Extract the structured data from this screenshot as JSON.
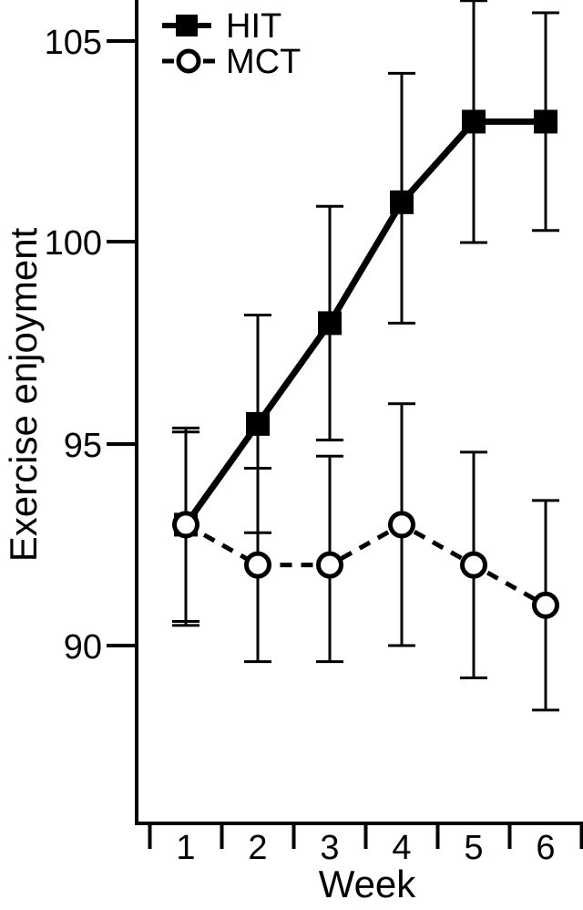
{
  "figure": {
    "background": "#ffffff",
    "ink": "#000000"
  },
  "chart_data": {
    "type": "line",
    "title": "",
    "xlabel": "Week",
    "ylabel": "Exercise enjoyment",
    "x": [
      1,
      2,
      3,
      4,
      5,
      6
    ],
    "x_tick_labels": [
      "1",
      "2",
      "3",
      "4",
      "5",
      "6"
    ],
    "y_ticks": [
      105,
      100,
      95,
      90
    ],
    "y_tick_labels": [
      "105",
      "100",
      "95",
      "90"
    ],
    "ylim": [
      85.6,
      106.1
    ],
    "grid": "off",
    "legend_position": "top-left",
    "series": [
      {
        "name": "HIT",
        "marker": "filled-square",
        "line_style": "solid",
        "color": "#000000",
        "values": [
          93,
          95.5,
          98,
          101,
          103,
          103
        ],
        "error_low": [
          90.5,
          92.8,
          95.1,
          98.0,
          100.0,
          100.3
        ],
        "error_high": [
          95.4,
          98.2,
          100.9,
          104.2,
          106.0,
          105.7
        ]
      },
      {
        "name": "MCT",
        "marker": "open-circle",
        "line_style": "dashed",
        "color": "#000000",
        "values": [
          93,
          92,
          92,
          93,
          92,
          91
        ],
        "error_low": [
          90.6,
          89.6,
          89.6,
          90.0,
          89.2,
          88.4
        ],
        "error_high": [
          95.3,
          94.4,
          94.7,
          96.0,
          94.8,
          93.6
        ]
      }
    ]
  }
}
